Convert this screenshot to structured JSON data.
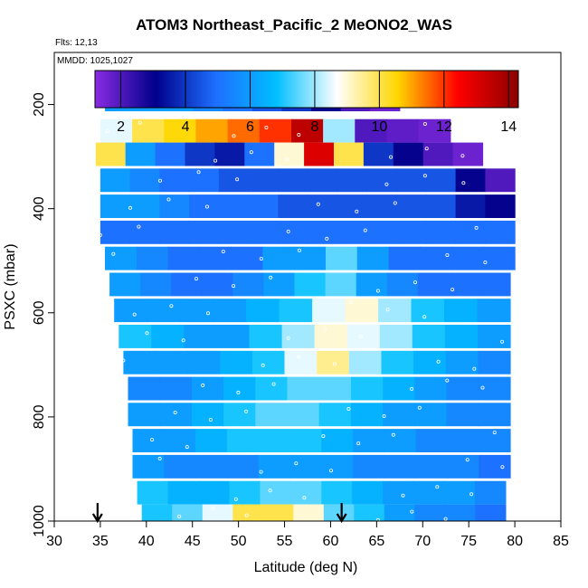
{
  "chart_data": {
    "type": "heatmap",
    "title": "ATOM3 Northeast_Pacific_2 MeONO2_WAS",
    "annotations": {
      "flights": "Flts: 12,13",
      "dates": "MMDD: 1025,1027"
    },
    "xlabel": "Latitude (deg N)",
    "ylabel": "PSXC (mbar)",
    "xlim": [
      30,
      85
    ],
    "ylim": [
      1000,
      100
    ],
    "x_ticks": [
      30,
      35,
      40,
      45,
      50,
      55,
      60,
      65,
      70,
      75,
      80,
      85
    ],
    "y_ticks": [
      200,
      400,
      600,
      800,
      1000
    ],
    "colorbar": {
      "range": [
        1.2,
        14.3
      ],
      "ticks": [
        2,
        4,
        6,
        8,
        10,
        12,
        14
      ],
      "colors": [
        "#8A2BE2",
        "#00008B",
        "#1E6FFF",
        "#00BFFF",
        "#FFFFFF",
        "#FFD700",
        "#FF0000",
        "#8B0000"
      ]
    },
    "markers": [
      34.7,
      61.2
    ],
    "layers": [
      {
        "p": 190,
        "x0": 35.5,
        "x1": 67.5,
        "v": [
          6,
          6,
          6,
          5.5,
          5,
          4.5,
          4,
          3,
          2,
          1.6
        ]
      },
      {
        "p": 250,
        "x0": 35.0,
        "x1": 73.0,
        "v": [
          8.5,
          10,
          10.5,
          11,
          11.5,
          12,
          13.5,
          8,
          2,
          1.8,
          1.6
        ]
      },
      {
        "p": 295,
        "x0": 34.5,
        "x1": 76.5,
        "v": [
          10,
          6,
          5,
          4,
          3.5,
          5,
          9,
          13,
          10,
          4,
          3,
          2,
          1.6
        ]
      },
      {
        "p": 345,
        "x0": 35.0,
        "x1": 80.0,
        "v": [
          6,
          5.5,
          5,
          5,
          4.5,
          4.5,
          4.5,
          4.5,
          4.5,
          4.5,
          4.5,
          4.5,
          3,
          2
        ]
      },
      {
        "p": 395,
        "x0": 35.0,
        "x1": 80.0,
        "v": [
          6,
          6,
          5.5,
          5,
          5,
          5,
          4.5,
          4.5,
          4.5,
          4.5,
          4.5,
          4.5,
          3.5,
          3
        ]
      },
      {
        "p": 445,
        "x0": 35.0,
        "x1": 80.0,
        "v": [
          5,
          5,
          5,
          5,
          5,
          5,
          5,
          5,
          5,
          5,
          5,
          5,
          5,
          5
        ]
      },
      {
        "p": 495,
        "x0": 35.5,
        "x1": 80.0,
        "v": [
          6,
          5.5,
          5,
          5,
          5,
          6,
          6,
          7.5,
          6,
          5,
          5,
          5,
          5
        ]
      },
      {
        "p": 545,
        "x0": 36.0,
        "x1": 79.5,
        "v": [
          6,
          5.5,
          5,
          5,
          5.5,
          6,
          7,
          7.5,
          6,
          5.5,
          5,
          5,
          5
        ]
      },
      {
        "p": 595,
        "x0": 36.5,
        "x1": 79.5,
        "v": [
          6,
          6,
          6,
          6,
          6.5,
          7,
          8.5,
          9,
          8,
          7,
          6.5,
          6
        ]
      },
      {
        "p": 645,
        "x0": 37.0,
        "x1": 79.5,
        "v": [
          7,
          6.5,
          6,
          6,
          7,
          8,
          9,
          8.5,
          8,
          7,
          6.5,
          6
        ]
      },
      {
        "p": 695,
        "x0": 37.5,
        "x1": 79.5,
        "v": [
          6,
          6,
          6,
          6.5,
          7,
          8.5,
          9.5,
          8,
          7,
          6.5,
          6,
          5.5
        ]
      },
      {
        "p": 745,
        "x0": 38.0,
        "x1": 79.5,
        "v": [
          5.5,
          5.5,
          6,
          6.5,
          7,
          7.5,
          7.5,
          7,
          6.5,
          6,
          5.5,
          5.5
        ]
      },
      {
        "p": 795,
        "x0": 38.0,
        "x1": 79.5,
        "v": [
          6,
          6,
          6.5,
          7,
          7.5,
          7.5,
          7,
          6.5,
          6,
          6,
          5.5,
          5.5
        ]
      },
      {
        "p": 845,
        "x0": 38.5,
        "x1": 79.5,
        "v": [
          6,
          6,
          6.5,
          7,
          7,
          7,
          6.5,
          6,
          6,
          5.5,
          5.5,
          5.5
        ]
      },
      {
        "p": 895,
        "x0": 38.5,
        "x1": 79.5,
        "v": [
          6,
          5.5,
          5.5,
          5.5,
          6,
          6,
          6,
          5.5,
          5.5,
          5.5,
          5.5,
          5
        ]
      },
      {
        "p": 945,
        "x0": 39.0,
        "x1": 79.0,
        "v": [
          7,
          6.5,
          6.5,
          7,
          7.5,
          7.5,
          7,
          6.5,
          6,
          6,
          6,
          5.5
        ]
      },
      {
        "p": 990,
        "x0": 39.5,
        "x1": 79.0,
        "v": [
          7,
          7.5,
          8.5,
          10,
          10,
          9,
          7.5,
          7,
          6,
          5.5,
          5.5,
          5
        ]
      }
    ]
  }
}
